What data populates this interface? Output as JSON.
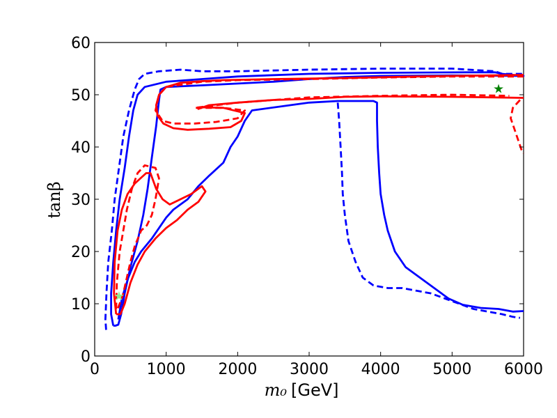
{
  "chart_data": {
    "type": "line",
    "title": "",
    "xlabel": "m₀",
    "xunit": "[GeV]",
    "ylabel": "tanβ",
    "xlim": [
      0,
      6000
    ],
    "ylim": [
      0,
      60
    ],
    "xticks": [
      0,
      1000,
      2000,
      3000,
      4000,
      5000,
      6000
    ],
    "yticks": [
      0,
      10,
      20,
      30,
      40,
      50,
      60
    ],
    "grid": false,
    "colors": {
      "blue": "#0000ff",
      "red": "#ff0000",
      "star_best": "#008000",
      "star_alt": "#90ee90"
    },
    "series": [
      {
        "name": "blue-solid-contour",
        "color": "#0000ff",
        "dash": "solid",
        "points": [
          [
            260,
            5.8
          ],
          [
            230,
            8
          ],
          [
            230,
            12
          ],
          [
            260,
            18
          ],
          [
            300,
            24
          ],
          [
            350,
            30
          ],
          [
            420,
            36
          ],
          [
            480,
            42
          ],
          [
            540,
            47
          ],
          [
            600,
            50
          ],
          [
            700,
            51.5
          ],
          [
            1000,
            52.5
          ],
          [
            1500,
            53
          ],
          [
            2000,
            53.5
          ],
          [
            3000,
            54
          ],
          [
            4000,
            54.2
          ],
          [
            5200,
            54.3
          ],
          [
            5600,
            54.3
          ],
          [
            5700,
            54
          ],
          [
            5850,
            53.8
          ],
          [
            6000,
            53.6
          ],
          [
            5000,
            53.7
          ],
          [
            4000,
            53.6
          ],
          [
            3500,
            53.4
          ],
          [
            3000,
            53
          ],
          [
            2500,
            52.5
          ],
          [
            1500,
            51.8
          ],
          [
            1000,
            51.5
          ],
          [
            920,
            51
          ],
          [
            900,
            49
          ],
          [
            860,
            44
          ],
          [
            800,
            38
          ],
          [
            740,
            32
          ],
          [
            680,
            27
          ],
          [
            600,
            22
          ],
          [
            500,
            17
          ],
          [
            420,
            12
          ],
          [
            370,
            8
          ],
          [
            330,
            6
          ],
          [
            290,
            5.8
          ],
          [
            260,
            5.8
          ]
        ]
      },
      {
        "name": "blue-solid-inner-channel",
        "color": "#0000ff",
        "dash": "solid",
        "points": [
          [
            330,
            7
          ],
          [
            380,
            11
          ],
          [
            470,
            15
          ],
          [
            560,
            18
          ],
          [
            650,
            20
          ],
          [
            800,
            22.5
          ],
          [
            900,
            24.5
          ],
          [
            1000,
            26.5
          ],
          [
            1100,
            28
          ],
          [
            1300,
            30
          ],
          [
            1450,
            32.5
          ],
          [
            1600,
            34.5
          ],
          [
            1800,
            37
          ],
          [
            1900,
            40
          ],
          [
            2000,
            42
          ],
          [
            2100,
            45
          ],
          [
            2200,
            47
          ],
          [
            3000,
            48.5
          ],
          [
            3400,
            48.8
          ],
          [
            3900,
            48.8
          ],
          [
            3950,
            48.5
          ],
          [
            3950,
            45
          ],
          [
            3960,
            40
          ],
          [
            3980,
            35
          ],
          [
            4000,
            31
          ],
          [
            4050,
            27
          ],
          [
            4100,
            24
          ],
          [
            4200,
            20
          ],
          [
            4350,
            17
          ],
          [
            4500,
            15.5
          ],
          [
            4650,
            14
          ],
          [
            4800,
            12.5
          ],
          [
            4950,
            11
          ],
          [
            5150,
            9.8
          ],
          [
            5400,
            9.2
          ],
          [
            5650,
            9
          ],
          [
            5850,
            8.5
          ],
          [
            6000,
            8.6
          ]
        ]
      },
      {
        "name": "blue-dashed-contour",
        "color": "#0000ff",
        "dash": "dashed",
        "points": [
          [
            160,
            5
          ],
          [
            150,
            7
          ],
          [
            165,
            12
          ],
          [
            190,
            18
          ],
          [
            240,
            24
          ],
          [
            280,
            30
          ],
          [
            340,
            36
          ],
          [
            400,
            42
          ],
          [
            480,
            47
          ],
          [
            560,
            51
          ],
          [
            620,
            53
          ],
          [
            700,
            54
          ],
          [
            900,
            54.5
          ],
          [
            1200,
            54.8
          ],
          [
            1500,
            54.5
          ],
          [
            2000,
            54.5
          ],
          [
            3000,
            54.8
          ],
          [
            4000,
            55
          ],
          [
            5000,
            55
          ],
          [
            5600,
            54.5
          ],
          [
            5700,
            54
          ],
          [
            6000,
            54
          ]
        ]
      },
      {
        "name": "blue-dashed-inner",
        "color": "#0000ff",
        "dash": "dashed",
        "points": [
          [
            3400,
            48.5
          ],
          [
            3420,
            45
          ],
          [
            3440,
            40
          ],
          [
            3460,
            35
          ],
          [
            3470,
            31
          ],
          [
            3500,
            27
          ],
          [
            3550,
            22
          ],
          [
            3650,
            18
          ],
          [
            3750,
            15
          ],
          [
            3900,
            13.5
          ],
          [
            4100,
            13
          ],
          [
            4300,
            13
          ],
          [
            4500,
            12.5
          ],
          [
            4700,
            12
          ],
          [
            4900,
            11
          ],
          [
            5100,
            10
          ],
          [
            5300,
            9
          ],
          [
            5500,
            8.5
          ],
          [
            5700,
            8
          ],
          [
            5850,
            7.5
          ],
          [
            5950,
            7.3
          ]
        ]
      },
      {
        "name": "red-solid-outer",
        "color": "#ff0000",
        "dash": "solid",
        "points": [
          [
            300,
            8
          ],
          [
            270,
            12
          ],
          [
            280,
            18
          ],
          [
            320,
            24
          ],
          [
            380,
            28
          ],
          [
            460,
            31
          ],
          [
            560,
            33
          ],
          [
            640,
            34
          ],
          [
            720,
            35
          ],
          [
            780,
            35
          ],
          [
            860,
            32
          ],
          [
            950,
            30
          ],
          [
            1050,
            29
          ],
          [
            1200,
            30
          ],
          [
            1350,
            31
          ],
          [
            1500,
            32.5
          ],
          [
            1550,
            31.5
          ],
          [
            1450,
            29.5
          ],
          [
            1300,
            28
          ],
          [
            1150,
            26
          ],
          [
            1000,
            24.5
          ],
          [
            850,
            22.5
          ],
          [
            700,
            20
          ],
          [
            600,
            17.5
          ],
          [
            500,
            14
          ],
          [
            420,
            10
          ],
          [
            360,
            8
          ],
          [
            300,
            8
          ]
        ]
      },
      {
        "name": "red-solid-upper-loop",
        "color": "#ff0000",
        "dash": "solid",
        "points": [
          [
            6000,
            53.8
          ],
          [
            5500,
            53.7
          ],
          [
            4500,
            53.5
          ],
          [
            3500,
            53.2
          ],
          [
            2500,
            53
          ],
          [
            1800,
            52.8
          ],
          [
            1500,
            52.6
          ],
          [
            1200,
            52.3
          ],
          [
            1000,
            51.5
          ],
          [
            900,
            50
          ],
          [
            860,
            48
          ],
          [
            880,
            46
          ],
          [
            960,
            44.5
          ],
          [
            1100,
            43.6
          ],
          [
            1300,
            43.3
          ],
          [
            1600,
            43.5
          ],
          [
            1900,
            43.8
          ],
          [
            2050,
            45
          ],
          [
            2100,
            46.5
          ],
          [
            1800,
            47.5
          ],
          [
            1500,
            47.6
          ],
          [
            1450,
            47.3
          ],
          [
            1600,
            48
          ],
          [
            2000,
            48.5
          ],
          [
            2500,
            49
          ],
          [
            3000,
            49.2
          ],
          [
            3500,
            49.6
          ],
          [
            4000,
            49.7
          ],
          [
            5000,
            49.6
          ],
          [
            5600,
            49.5
          ],
          [
            6000,
            49.4
          ]
        ]
      },
      {
        "name": "red-dashed-left",
        "color": "#ff0000",
        "dash": "dashed",
        "points": [
          [
            300,
            9
          ],
          [
            310,
            14
          ],
          [
            350,
            20
          ],
          [
            400,
            24
          ],
          [
            450,
            28
          ],
          [
            520,
            32
          ],
          [
            600,
            35
          ],
          [
            700,
            36.5
          ],
          [
            850,
            36
          ],
          [
            900,
            34
          ],
          [
            850,
            30
          ],
          [
            800,
            27
          ],
          [
            730,
            25
          ],
          [
            650,
            24
          ],
          [
            560,
            21
          ],
          [
            500,
            18
          ],
          [
            450,
            15
          ],
          [
            400,
            12
          ],
          [
            350,
            10
          ],
          [
            320,
            9
          ]
        ]
      },
      {
        "name": "red-dashed-upper",
        "color": "#ff0000",
        "dash": "dashed",
        "points": [
          [
            6000,
            53.5
          ],
          [
            5000,
            53.5
          ],
          [
            4000,
            53.3
          ],
          [
            3000,
            53
          ],
          [
            2000,
            52.8
          ],
          [
            1500,
            52.5
          ],
          [
            1000,
            51.5
          ],
          [
            900,
            50
          ],
          [
            850,
            47
          ],
          [
            950,
            45
          ],
          [
            1100,
            44.5
          ],
          [
            1400,
            44.5
          ],
          [
            1700,
            44.8
          ],
          [
            2000,
            45.5
          ],
          [
            2100,
            47
          ],
          [
            1800,
            47.5
          ],
          [
            1400,
            47.5
          ],
          [
            2000,
            48.5
          ],
          [
            3000,
            49.5
          ],
          [
            4000,
            49.8
          ],
          [
            5000,
            50
          ],
          [
            5800,
            49.8
          ]
        ]
      },
      {
        "name": "red-dashed-right-tail",
        "color": "#ff0000",
        "dash": "dashed",
        "points": [
          [
            5950,
            49
          ],
          [
            5850,
            47.5
          ],
          [
            5820,
            45.5
          ],
          [
            5870,
            43.5
          ],
          [
            5920,
            41.5
          ],
          [
            5970,
            39.5
          ],
          [
            6000,
            38.8
          ]
        ]
      }
    ],
    "markers": [
      {
        "name": "best-fit-star",
        "x": 5650,
        "y": 51.3,
        "color": "#008000",
        "symbol": "★"
      },
      {
        "name": "secondary-star",
        "x": 340,
        "y": 11.6,
        "color": "#90ee90",
        "symbol": "★"
      }
    ]
  }
}
